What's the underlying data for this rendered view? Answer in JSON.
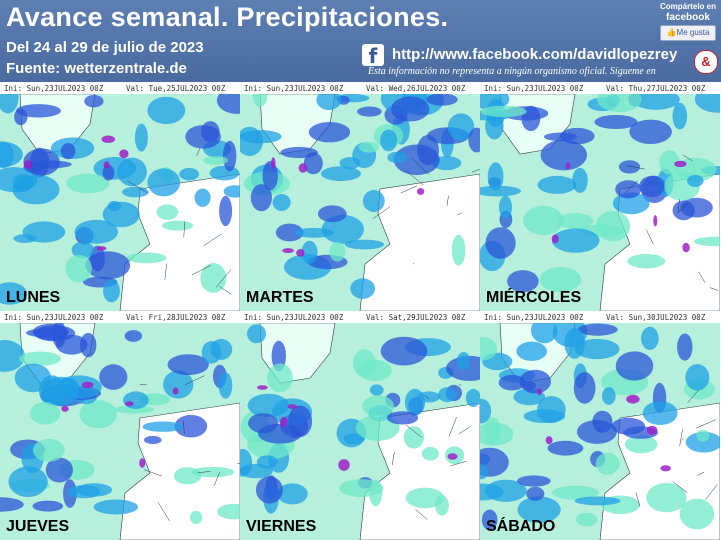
{
  "header": {
    "title": "Avance semanal. Precipitaciones.",
    "dates": "Del 24 al 29 de julio de 2023",
    "source": "Fuente: wetterzentrale.de",
    "facebook_url": "http://www.facebook.com/davidlopezrey",
    "disclaimer": "Esta información no representa a ningún organismo oficial. Sígueme en",
    "share_label": "Compártelo en",
    "share_network": "facebook",
    "like_label": "Me gusta",
    "fb_glyph": "f",
    "badge_glyph": "&"
  },
  "panels": [
    {
      "ini": "Ini: Sun,23JUL2023 00Z",
      "val": "Val: Tue,25JUL2023 00Z",
      "day": "LUNES"
    },
    {
      "ini": "Ini: Sun,23JUL2023 00Z",
      "val": "Val: Wed,26JUL2023 00Z",
      "day": "MARTES"
    },
    {
      "ini": "Ini: Sun,23JUL2023 00Z",
      "val": "Val: Thu,27JUL2023 00Z",
      "day": "MIÉRCOLES"
    },
    {
      "ini": "Ini: Sun,23JUL2023 00Z",
      "val": "Val: Fri,28JUL2023 00Z",
      "day": "JUEVES"
    },
    {
      "ini": "Ini: Sun,23JUL2023 00Z",
      "val": "Val: Sat,29JUL2023 00Z",
      "day": "VIERNES"
    },
    {
      "ini": "Ini: Sun,23JUL2023 00Z",
      "val": "Val: Sun,30JUL2023 00Z",
      "day": "SÁBADO"
    }
  ],
  "colors": {
    "header_bg": "#4f70a6",
    "precip_light": "#6fe8c8",
    "precip_medium": "#1ea0e6",
    "precip_heavy": "#2a55d8",
    "precip_extreme": "#a020c8",
    "land": "#ffffff"
  }
}
